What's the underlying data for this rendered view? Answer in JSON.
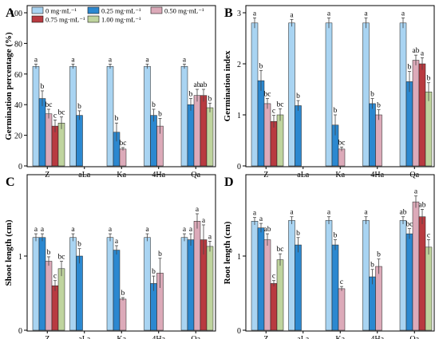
{
  "legend": {
    "entries": [
      "0 mg·mL⁻¹",
      "0.25 mg·mL⁻¹",
      "0.50 mg·mL⁻¹",
      "0.75 mg·mL⁻¹",
      "1.00 mg·mL⁻¹"
    ]
  },
  "colors": {
    "0 mg·mL⁻¹": "#a9d4f2",
    "0.25 mg·mL⁻¹": "#2b88d0",
    "0.50 mg·mL⁻¹": "#dcaab9",
    "0.75 mg·mL⁻¹": "#b83a40",
    "1.00 mg·mL⁻¹": "#bfd49e"
  },
  "chart_data": [
    {
      "panel_label": "A",
      "type": "bar",
      "ylabel": "Germination percentage (%)",
      "ylim": [
        0,
        100
      ],
      "yticks": [
        0,
        20,
        40,
        60,
        80,
        100
      ],
      "categories": [
        "Z",
        "aLa",
        "Ka",
        "4Ha",
        "Qa"
      ],
      "series": [
        {
          "name": "0 mg·mL⁻¹",
          "values": [
            65,
            65,
            65,
            65,
            65
          ],
          "errors": [
            1.5,
            1.5,
            1.5,
            1.5,
            1.5
          ],
          "letters": [
            "a",
            "a",
            "a",
            "a",
            "a"
          ]
        },
        {
          "name": "0.25 mg·mL⁻¹",
          "values": [
            44,
            33,
            22,
            33,
            40
          ],
          "errors": [
            5,
            3,
            6,
            4,
            4
          ],
          "letters": [
            "b",
            "b",
            "b",
            "b",
            "b"
          ]
        },
        {
          "name": "0.50 mg·mL⁻¹",
          "values": [
            34,
            null,
            11,
            26,
            46
          ],
          "errors": [
            3,
            null,
            1,
            5,
            4
          ],
          "letters": [
            "bc",
            "",
            "bc",
            "b",
            "ab"
          ]
        },
        {
          "name": "0.75 mg·mL⁻¹",
          "values": [
            26,
            null,
            null,
            null,
            46
          ],
          "errors": [
            4,
            null,
            null,
            null,
            4
          ],
          "letters": [
            "c",
            "",
            "",
            "",
            "ab"
          ]
        },
        {
          "name": "1.00 mg·mL⁻¹",
          "values": [
            28,
            null,
            null,
            null,
            38
          ],
          "errors": [
            4,
            null,
            null,
            null,
            3
          ],
          "letters": [
            "bc",
            "",
            "",
            "",
            "b"
          ]
        }
      ]
    },
    {
      "panel_label": "B",
      "type": "bar",
      "ylabel": "Germination index",
      "ylim": [
        0,
        3
      ],
      "yticks": [
        0,
        1,
        2,
        3
      ],
      "categories": [
        "Z",
        "aLa",
        "Ka",
        "4Ha",
        "Qa"
      ],
      "series": [
        {
          "name": "0 mg·mL⁻¹",
          "values": [
            2.8,
            2.8,
            2.8,
            2.8,
            2.8
          ],
          "errors": [
            0.1,
            0.07,
            0.1,
            0.1,
            0.1
          ],
          "letters": [
            "a",
            "a",
            "a",
            "a",
            "a"
          ]
        },
        {
          "name": "0.25 mg·mL⁻¹",
          "values": [
            1.67,
            1.18,
            0.8,
            1.22,
            1.65
          ],
          "errors": [
            0.2,
            0.1,
            0.2,
            0.1,
            0.2
          ],
          "letters": [
            "b",
            "b",
            "b",
            "b",
            "b"
          ]
        },
        {
          "name": "0.50 mg·mL⁻¹",
          "values": [
            1.22,
            null,
            0.33,
            1.0,
            2.07
          ],
          "errors": [
            0.1,
            null,
            0.04,
            0.1,
            0.1
          ],
          "letters": [
            "bc",
            "",
            "bc",
            "b",
            "ab"
          ]
        },
        {
          "name": "0.75 mg·mL⁻¹",
          "values": [
            0.87,
            null,
            null,
            null,
            2.0
          ],
          "errors": [
            0.12,
            null,
            null,
            null,
            0.12
          ],
          "letters": [
            "c",
            "",
            "",
            "",
            "a"
          ]
        },
        {
          "name": "1.00 mg·mL⁻¹",
          "values": [
            1.0,
            null,
            null,
            null,
            1.45
          ],
          "errors": [
            0.12,
            null,
            null,
            null,
            0.18
          ],
          "letters": [
            "bc",
            "",
            "",
            "",
            "b"
          ]
        }
      ]
    },
    {
      "panel_label": "C",
      "type": "bar",
      "ylabel": "Shoot length (cm)",
      "ylim": [
        0,
        2
      ],
      "yticks": [
        0,
        1
      ],
      "categories": [
        "Z",
        "aLa",
        "Ka",
        "4Ha",
        "Qa"
      ],
      "series": [
        {
          "name": "0 mg·mL⁻¹",
          "values": [
            1.25,
            1.25,
            1.25,
            1.25,
            1.25
          ],
          "errors": [
            0.05,
            0.05,
            0.05,
            0.05,
            0.05
          ],
          "letters": [
            "a",
            "a",
            "a",
            "a",
            "a"
          ]
        },
        {
          "name": "0.25 mg·mL⁻¹",
          "values": [
            1.25,
            1.0,
            1.08,
            0.63,
            1.22
          ],
          "errors": [
            0.05,
            0.1,
            0.06,
            0.1,
            0.08
          ],
          "letters": [
            "a",
            "b",
            "a",
            "b",
            "a"
          ]
        },
        {
          "name": "0.50 mg·mL⁻¹",
          "values": [
            0.93,
            null,
            0.42,
            0.77,
            1.47
          ],
          "errors": [
            0.06,
            null,
            0.02,
            0.2,
            0.1
          ],
          "letters": [
            "b",
            "",
            "b",
            "b",
            "a"
          ]
        },
        {
          "name": "0.75 mg·mL⁻¹",
          "values": [
            0.6,
            null,
            null,
            null,
            1.22
          ],
          "errors": [
            0.07,
            null,
            null,
            null,
            0.2
          ],
          "letters": [
            "c",
            "",
            "",
            "",
            "a"
          ]
        },
        {
          "name": "1.00 mg·mL⁻¹",
          "values": [
            0.83,
            null,
            null,
            null,
            1.13
          ],
          "errors": [
            0.1,
            null,
            null,
            null,
            0.07
          ],
          "letters": [
            "bc",
            "",
            "",
            "",
            "a"
          ]
        }
      ]
    },
    {
      "panel_label": "D",
      "type": "bar",
      "ylabel": "Root length (cm)",
      "ylim": [
        0,
        2
      ],
      "yticks": [
        0,
        1
      ],
      "categories": [
        "Z",
        "aLa",
        "Ka",
        "4Ha",
        "Qa"
      ],
      "series": [
        {
          "name": "0 mg·mL⁻¹",
          "values": [
            1.47,
            1.48,
            1.48,
            1.48,
            1.48
          ],
          "errors": [
            0.05,
            0.05,
            0.05,
            0.05,
            0.05
          ],
          "letters": [
            "a",
            "a",
            "a",
            "a",
            "ab"
          ]
        },
        {
          "name": "0.25 mg·mL⁻¹",
          "values": [
            1.38,
            1.15,
            1.15,
            0.72,
            1.3
          ],
          "errors": [
            0.06,
            0.1,
            0.07,
            0.1,
            0.07
          ],
          "letters": [
            "a",
            "b",
            "b",
            "b",
            "bc"
          ]
        },
        {
          "name": "0.50 mg·mL⁻¹",
          "values": [
            1.22,
            null,
            0.56,
            0.86,
            1.73
          ],
          "errors": [
            0.08,
            null,
            0.03,
            0.1,
            0.08
          ],
          "letters": [
            "ab",
            "",
            "c",
            "b",
            "a"
          ]
        },
        {
          "name": "0.75 mg·mL⁻¹",
          "values": [
            0.63,
            null,
            null,
            null,
            1.53
          ],
          "errors": [
            0.04,
            null,
            null,
            null,
            0.1
          ],
          "letters": [
            "c",
            "",
            "",
            "",
            "ab"
          ]
        },
        {
          "name": "1.00 mg·mL⁻¹",
          "values": [
            0.95,
            null,
            null,
            null,
            1.12
          ],
          "errors": [
            0.08,
            null,
            null,
            null,
            0.1
          ],
          "letters": [
            "bc",
            "",
            "",
            "",
            "c"
          ]
        }
      ]
    }
  ]
}
